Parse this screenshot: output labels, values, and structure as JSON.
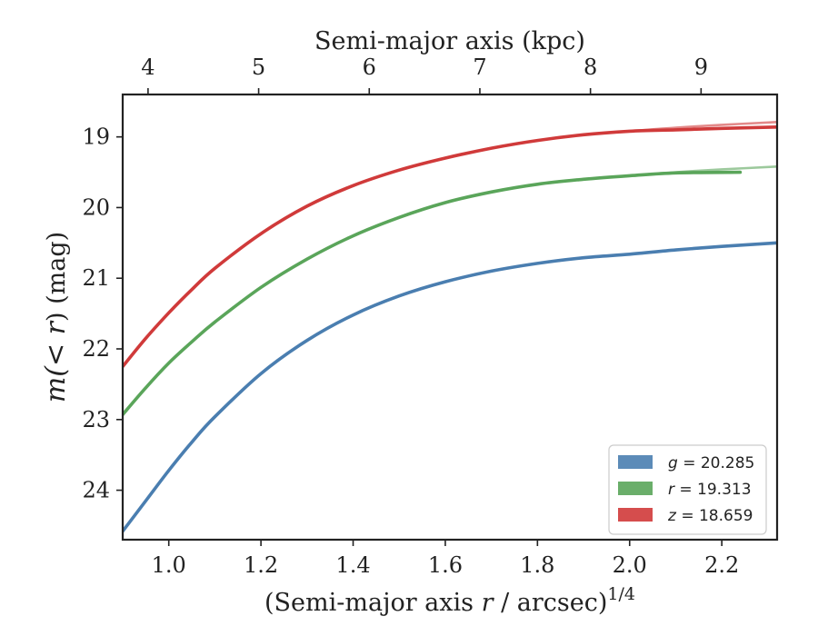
{
  "chart_data": {
    "type": "line",
    "xlabel_prefix": "(Semi-major axis ",
    "xlabel_var": "r",
    "xlabel_suffix": " / arcsec)",
    "xlabel_sup": "1/4",
    "x2label": "Semi-major axis (kpc)",
    "ylabel_var": "m",
    "ylabel_mid": "(< ",
    "ylabel_var2": "r",
    "ylabel_suffix": ") (mag)",
    "xlim": [
      0.9,
      2.32
    ],
    "ylim": [
      24.7,
      18.4
    ],
    "y_inverted": true,
    "xticks": [
      "1.0",
      "1.2",
      "1.4",
      "1.6",
      "1.8",
      "2.0",
      "2.2"
    ],
    "xtick_values": [
      1.0,
      1.2,
      1.4,
      1.6,
      1.8,
      2.0,
      2.2
    ],
    "yticks": [
      "19",
      "20",
      "21",
      "22",
      "23",
      "24"
    ],
    "ytick_values": [
      19,
      20,
      21,
      22,
      23,
      24
    ],
    "x2ticks": [
      "4",
      "5",
      "6",
      "7",
      "8",
      "9"
    ],
    "x2tick_values": [
      4,
      5,
      6,
      7,
      8,
      9
    ],
    "x2_positions_x": [
      0.955,
      1.195,
      1.435,
      1.675,
      1.915,
      2.155
    ],
    "grid": false,
    "legend_position": "bottom-right",
    "series": [
      {
        "name": "g = 20.285",
        "legend_var": "g",
        "legend_value": "= 20.285",
        "color": "#4a7eb0",
        "x": [
          0.9,
          0.95,
          1.0,
          1.05,
          1.1,
          1.2,
          1.3,
          1.4,
          1.5,
          1.6,
          1.7,
          1.8,
          1.9,
          2.0,
          2.1,
          2.2,
          2.32
        ],
        "y": [
          24.58,
          24.15,
          23.72,
          23.32,
          22.96,
          22.35,
          21.88,
          21.52,
          21.25,
          21.05,
          20.9,
          20.79,
          20.71,
          20.66,
          20.6,
          20.55,
          20.5
        ]
      },
      {
        "name": "r = 19.313",
        "legend_var": "r",
        "legend_value": "= 19.313",
        "color": "#5aa55a",
        "x": [
          0.9,
          0.95,
          1.0,
          1.05,
          1.1,
          1.2,
          1.3,
          1.4,
          1.5,
          1.6,
          1.7,
          1.8,
          1.9,
          2.0,
          2.1,
          2.24
        ],
        "y": [
          22.93,
          22.55,
          22.2,
          21.9,
          21.62,
          21.13,
          20.73,
          20.4,
          20.14,
          19.93,
          19.78,
          19.67,
          19.6,
          19.55,
          19.51,
          19.5
        ],
        "model_x": [
          2.0,
          2.1,
          2.2,
          2.32
        ],
        "model_y": [
          19.55,
          19.5,
          19.46,
          19.42
        ]
      },
      {
        "name": "z = 18.659",
        "legend_var": "z",
        "legend_value": "= 18.659",
        "color": "#d03a3a",
        "x": [
          0.9,
          0.95,
          1.0,
          1.05,
          1.1,
          1.2,
          1.3,
          1.4,
          1.5,
          1.6,
          1.7,
          1.8,
          1.9,
          2.0,
          2.1,
          2.2,
          2.32
        ],
        "y": [
          22.25,
          21.85,
          21.49,
          21.16,
          20.86,
          20.37,
          19.98,
          19.69,
          19.47,
          19.3,
          19.16,
          19.05,
          18.97,
          18.92,
          18.9,
          18.88,
          18.86
        ],
        "model_x": [
          2.0,
          2.1,
          2.2,
          2.32
        ],
        "model_y": [
          18.92,
          18.87,
          18.83,
          18.79
        ]
      }
    ]
  }
}
